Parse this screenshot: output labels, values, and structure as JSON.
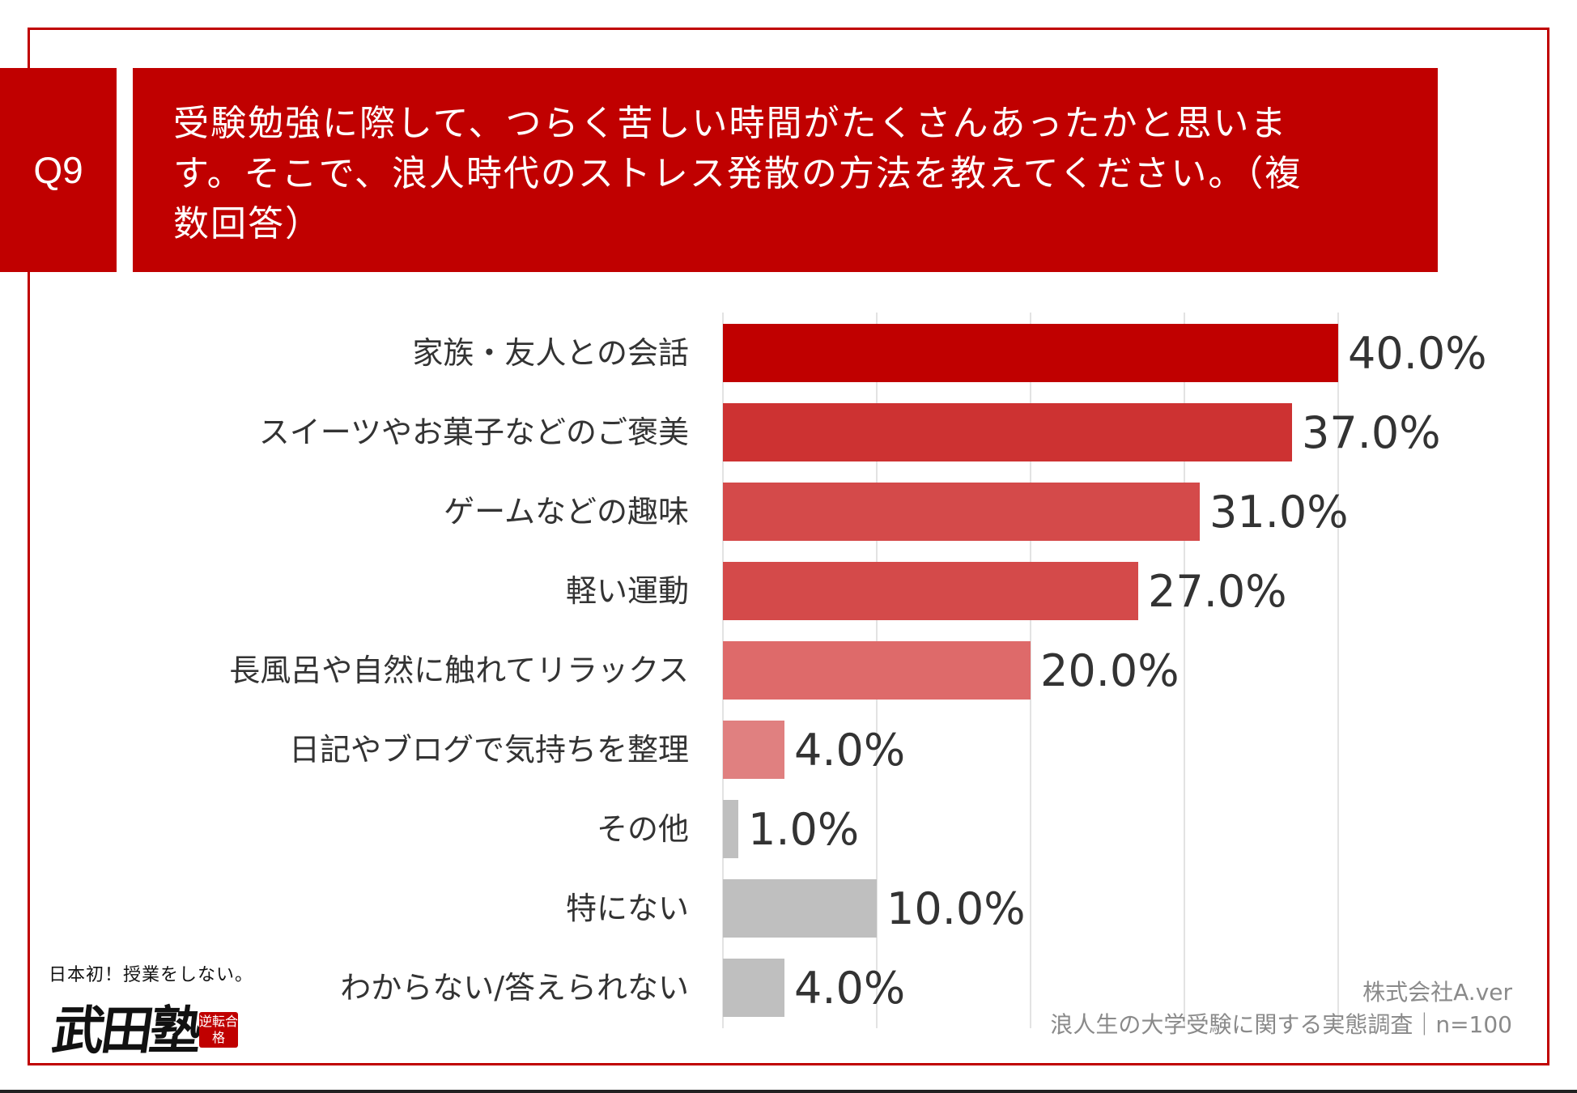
{
  "question": {
    "badge": "Q9",
    "text": "受験勉強に際して、つらく苦しい時間がたくさんあったかと思います。そこで、浪人時代のストレス発散の方法を教えてください。（複数回答）"
  },
  "chart_data": {
    "type": "bar",
    "orientation": "horizontal",
    "categories": [
      "家族・友人との会話",
      "スイーツやお菓子などのご褒美",
      "ゲームなどの趣味",
      "軽い運動",
      "長風呂や自然に触れてリラックス",
      "日記やブログで気持ちを整理",
      "その他",
      "特にない",
      "わからない/答えられない"
    ],
    "values": [
      40.0,
      37.0,
      31.0,
      27.0,
      20.0,
      4.0,
      1.0,
      10.0,
      4.0
    ],
    "value_labels": [
      "40.0%",
      "37.0%",
      "31.0%",
      "27.0%",
      "20.0%",
      "4.0%",
      "1.0%",
      "10.0%",
      "4.0%"
    ],
    "colors": [
      "#c00000",
      "#cd3232",
      "#d44a4a",
      "#d44a4a",
      "#de6a6a",
      "#e08080",
      "#bfbfbf",
      "#bfbfbf",
      "#bfbfbf"
    ],
    "xlim": [
      0,
      40
    ],
    "grid": true,
    "unit": "%"
  },
  "logo": {
    "tagline": "日本初！授業をしない。",
    "name": "武田塾",
    "stamp": "逆転合格"
  },
  "source": {
    "company": "株式会社A.ver",
    "survey": "浪人生の大学受験に関する実態調査｜n=100"
  }
}
